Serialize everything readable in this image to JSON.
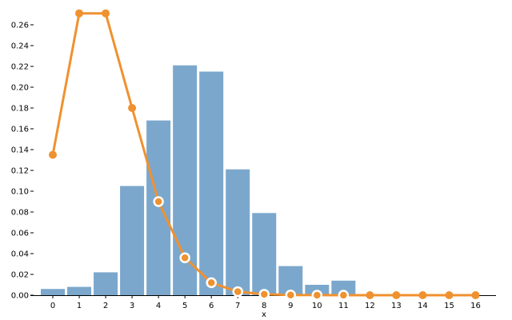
{
  "chart_data": {
    "type": "bar",
    "xlabel": "x",
    "ylabel": "",
    "ylim": [
      0,
      0.27
    ],
    "categories": [
      "0",
      "1",
      "2",
      "3",
      "4",
      "5",
      "6",
      "7",
      "8",
      "9",
      "10",
      "11",
      "12",
      "13",
      "14",
      "15",
      "16"
    ],
    "y_ticks": [
      "0.00",
      "0.02",
      "0.04",
      "0.06",
      "0.08",
      "0.10",
      "0.12",
      "0.14",
      "0.16",
      "0.18",
      "0.20",
      "0.22",
      "0.24",
      "0.26"
    ],
    "grid": false,
    "series": [
      {
        "type": "bar",
        "color": "#7ba7cc",
        "values": [
          0.006,
          0.008,
          0.022,
          0.105,
          0.168,
          0.221,
          0.215,
          0.121,
          0.079,
          0.028,
          0.01,
          0.014,
          0,
          0,
          0,
          0,
          0
        ]
      },
      {
        "type": "line",
        "color": "#f0912f",
        "values": [
          0.135,
          0.271,
          0.271,
          0.18,
          0.09,
          0.036,
          0.012,
          0.0034,
          0.0009,
          0.0002,
          4e-05,
          1e-05,
          0,
          0,
          0,
          0,
          0
        ],
        "hollow_markers": [
          4,
          5,
          6,
          7,
          8,
          9,
          10,
          11
        ]
      }
    ]
  }
}
